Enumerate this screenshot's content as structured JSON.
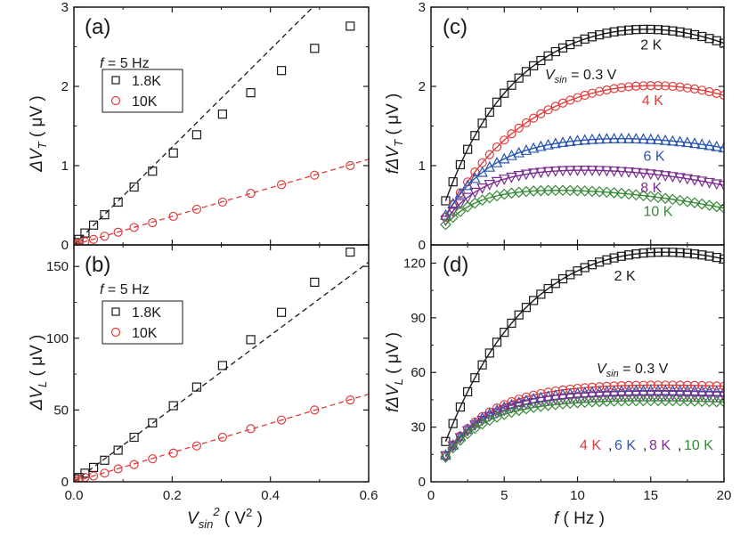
{
  "chart_data": [
    {
      "panel": "(a)",
      "type": "scatter",
      "annotation": "f = 5 Hz",
      "legend": [
        "1.8K",
        "10K"
      ],
      "xlim": [
        0,
        0.6
      ],
      "ylim": [
        0,
        3
      ],
      "yticks": [
        "0",
        "1",
        "2",
        "3"
      ],
      "ylabel_parts": [
        "ΔV",
        "T",
        " ( μV )"
      ],
      "series": [
        {
          "name": "1.8K",
          "color": "#1a1a1a",
          "marker": "square",
          "x": [
            0.0025,
            0.01,
            0.0225,
            0.04,
            0.0625,
            0.09,
            0.1225,
            0.16,
            0.2025,
            0.25,
            0.3025,
            0.36,
            0.4225,
            0.49,
            0.5625
          ],
          "y": [
            0.03,
            0.07,
            0.15,
            0.25,
            0.38,
            0.54,
            0.73,
            0.93,
            1.16,
            1.39,
            1.65,
            1.92,
            2.2,
            2.48,
            2.76
          ],
          "fit_line": [
            [
              0,
              0
            ],
            [
              0.6,
              3.7
            ]
          ]
        },
        {
          "name": "10K",
          "color": "#e03c3c",
          "marker": "circle",
          "x": [
            0.0025,
            0.01,
            0.0225,
            0.04,
            0.0625,
            0.09,
            0.1225,
            0.16,
            0.2025,
            0.25,
            0.3025,
            0.36,
            0.4225,
            0.49,
            0.5625
          ],
          "y": [
            0.01,
            0.02,
            0.04,
            0.07,
            0.11,
            0.16,
            0.22,
            0.28,
            0.36,
            0.45,
            0.54,
            0.65,
            0.76,
            0.88,
            1.0
          ],
          "fit_line": [
            [
              0,
              0
            ],
            [
              0.6,
              1.08
            ]
          ]
        }
      ]
    },
    {
      "panel": "(b)",
      "type": "scatter",
      "annotation": "f = 5 Hz",
      "legend": [
        "1.8K",
        "10K"
      ],
      "xlim": [
        0,
        0.6
      ],
      "ylim": [
        0,
        165
      ],
      "yticks": [
        "0",
        "50",
        "100",
        "150"
      ],
      "xticks": [
        "0.0",
        "0.2",
        "0.4",
        "0.6"
      ],
      "xlabel": "V",
      "ylabel_parts": [
        "ΔV",
        "L",
        " ( μV )"
      ],
      "series": [
        {
          "name": "1.8K",
          "color": "#1a1a1a",
          "marker": "square",
          "x": [
            0.0025,
            0.01,
            0.0225,
            0.04,
            0.0625,
            0.09,
            0.1225,
            0.16,
            0.2025,
            0.25,
            0.3025,
            0.36,
            0.4225,
            0.49,
            0.5625
          ],
          "y": [
            2,
            3,
            6,
            10,
            15,
            22,
            31,
            41,
            53,
            66,
            81,
            99,
            118,
            139,
            160
          ],
          "fit_line": [
            [
              0,
              0
            ],
            [
              0.6,
              153
            ]
          ]
        },
        {
          "name": "10K",
          "color": "#e03c3c",
          "marker": "circle",
          "x": [
            0.0025,
            0.01,
            0.0225,
            0.04,
            0.0625,
            0.09,
            0.1225,
            0.16,
            0.2025,
            0.25,
            0.3025,
            0.36,
            0.4225,
            0.49,
            0.5625
          ],
          "y": [
            0.5,
            1,
            3,
            4,
            6,
            9,
            12,
            16,
            20,
            25,
            31,
            37,
            43,
            50,
            57
          ],
          "fit_line": [
            [
              0,
              0
            ],
            [
              0.6,
              61
            ]
          ]
        }
      ]
    },
    {
      "panel": "(c)",
      "type": "scatter",
      "annotation_parts": [
        "V",
        "sin",
        " = 0.3 V"
      ],
      "xlim": [
        0,
        20
      ],
      "ylim": [
        0,
        3
      ],
      "yticks": [
        "0",
        "1",
        "2",
        "3"
      ],
      "ylabel_parts": [
        "fΔV",
        "T",
        " ( μV )"
      ],
      "series": [
        {
          "name": "2 K",
          "color": "#1a1a1a",
          "marker": "square",
          "amp": 2.72,
          "tau": 2.4,
          "peak": 14.5,
          "curv": 0.0022,
          "label_x": 14.3,
          "label_y": 2.52
        },
        {
          "name": "4 K",
          "color": "#e03c3c",
          "marker": "circle",
          "amp": 2.01,
          "tau": 2.4,
          "peak": 15.0,
          "curv": 0.0025,
          "label_x": 14.4,
          "label_y": 1.82
        },
        {
          "name": "6 K",
          "color": "#2a56b0",
          "marker": "triangle-up",
          "amp": 1.34,
          "tau": 2.3,
          "peak": 12.5,
          "curv": 0.0016,
          "label_x": 14.5,
          "label_y": 1.12
        },
        {
          "name": "8 K",
          "color": "#7b2f8f",
          "marker": "triangle-down",
          "amp": 0.94,
          "tau": 2.1,
          "peak": 9.5,
          "curv": 0.0019,
          "label_x": 14.3,
          "label_y": 0.72
        },
        {
          "name": "10 K",
          "color": "#3a8a3a",
          "marker": "diamond",
          "amp": 0.68,
          "tau": 2.0,
          "peak": 7.0,
          "curv": 0.002,
          "label_x": 14.5,
          "label_y": 0.42
        }
      ]
    },
    {
      "panel": "(d)",
      "type": "scatter",
      "annotation_parts": [
        "V",
        "sin",
        " = 0.3 V"
      ],
      "xlim": [
        0,
        20
      ],
      "ylim": [
        0,
        130
      ],
      "yticks": [
        "0",
        "30",
        "60",
        "90",
        "120"
      ],
      "xticks": [
        "0",
        "5",
        "10",
        "15",
        "20"
      ],
      "xlabel": "f ( Hz )",
      "ylabel_parts": [
        "fΔV",
        "L",
        " ( μV )"
      ],
      "series": [
        {
          "name": "2 K",
          "color": "#1a1a1a",
          "marker": "square",
          "amp": 125.5,
          "tau": 3.8,
          "peak": 14.5,
          "curv": 0.0014,
          "label_x": 12.5,
          "label_y": 113
        },
        {
          "name": "4 K",
          "color": "#e03c3c",
          "marker": "circle",
          "amp": 53,
          "tau": 2.8,
          "peak": 14.5,
          "curv": 0.0005
        },
        {
          "name": "6 K",
          "color": "#2a56b0",
          "marker": "triangle-up",
          "amp": 50,
          "tau": 2.6,
          "peak": 14.5,
          "curv": 0.0005
        },
        {
          "name": "8 K",
          "color": "#7b2f8f",
          "marker": "triangle-down",
          "amp": 47.5,
          "tau": 2.5,
          "peak": 14.5,
          "curv": 0.0005
        },
        {
          "name": "10 K",
          "color": "#3a8a3a",
          "marker": "diamond",
          "amp": 44.5,
          "tau": 2.4,
          "peak": 14.5,
          "curv": 0.0006
        }
      ]
    }
  ]
}
